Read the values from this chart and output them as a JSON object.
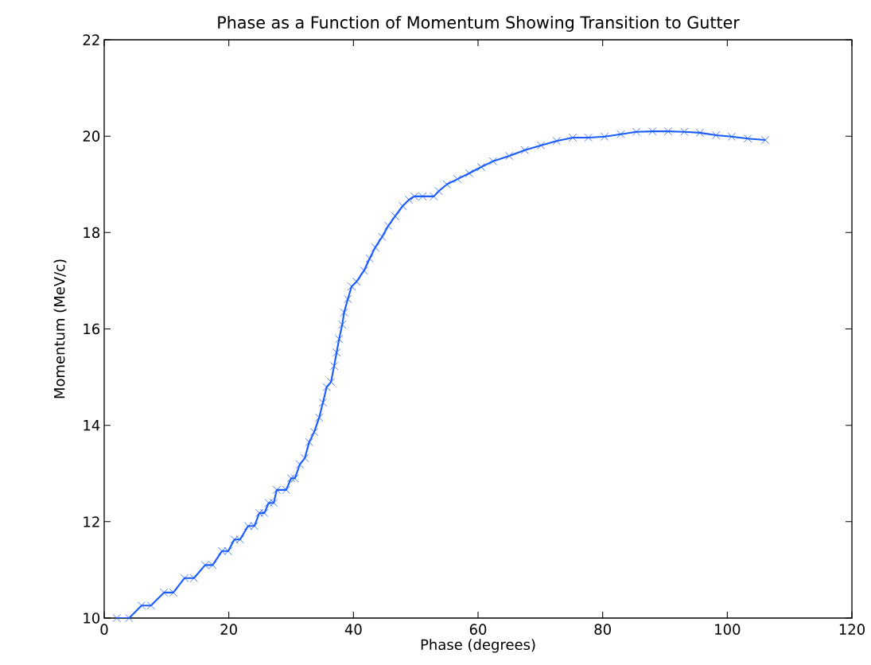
{
  "chart_data": {
    "type": "line",
    "title": "Phase as a Function of Momentum Showing Transition to Gutter",
    "xlabel": "Phase (degrees)",
    "ylabel": "Momentum (MeV/c)",
    "xlim": [
      0,
      120
    ],
    "ylim": [
      10,
      22
    ],
    "xticks": [
      0,
      20,
      40,
      60,
      80,
      100,
      120
    ],
    "yticks": [
      10,
      12,
      14,
      16,
      18,
      20,
      22
    ],
    "grid": false,
    "marker": "cross",
    "line_style": "solid",
    "series": [
      {
        "color": "#1a5cff",
        "x": [
          2.0,
          4.0,
          6.0,
          7.5,
          9.6,
          11.1,
          12.9,
          14.4,
          16.2,
          17.4,
          18.9,
          19.9,
          20.9,
          21.8,
          23.1,
          24.1,
          24.9,
          25.7,
          26.4,
          27.2,
          27.7,
          29.2,
          30.0,
          30.6,
          31.4,
          32.2,
          32.9,
          33.7,
          34.5,
          35.1,
          35.7,
          36.4,
          36.9,
          37.3,
          37.7,
          38.2,
          38.5,
          39.1,
          39.7,
          40.5,
          41.7,
          42.6,
          43.5,
          44.6,
          45.6,
          46.7,
          47.9,
          48.9,
          49.8,
          51.1,
          52.9,
          53.7,
          55.0,
          56.7,
          58.6,
          60.5,
          62.4,
          65.0,
          67.5,
          70.1,
          72.6,
          75.2,
          77.7,
          80.3,
          82.9,
          85.4,
          88.0,
          90.5,
          93.1,
          95.6,
          98.2,
          100.7,
          103.3,
          106.1
        ],
        "values": [
          10.0,
          10.0,
          10.26,
          10.26,
          10.53,
          10.53,
          10.83,
          10.83,
          11.1,
          11.1,
          11.39,
          11.39,
          11.63,
          11.63,
          11.91,
          11.91,
          12.18,
          12.18,
          12.39,
          12.39,
          12.66,
          12.66,
          12.9,
          12.9,
          13.19,
          13.32,
          13.65,
          13.86,
          14.16,
          14.47,
          14.79,
          14.9,
          15.23,
          15.51,
          15.79,
          16.09,
          16.34,
          16.62,
          16.88,
          16.98,
          17.21,
          17.46,
          17.69,
          17.91,
          18.14,
          18.34,
          18.55,
          18.68,
          18.75,
          18.75,
          18.75,
          18.86,
          19.0,
          19.11,
          19.23,
          19.36,
          19.48,
          19.59,
          19.71,
          19.81,
          19.9,
          19.97,
          19.97,
          19.99,
          20.04,
          20.09,
          20.1,
          20.1,
          20.09,
          20.07,
          20.02,
          19.99,
          19.95,
          19.92
        ]
      }
    ]
  }
}
